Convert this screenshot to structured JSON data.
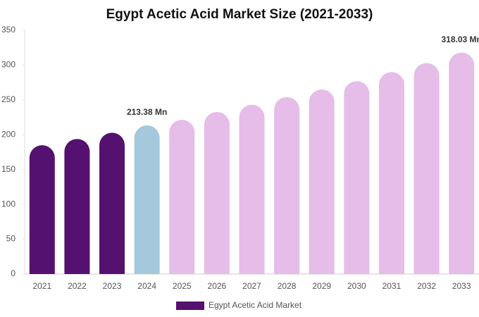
{
  "chart_data": {
    "type": "bar",
    "title": "Egypt Acetic Acid Market Size (2021-2033)",
    "categories": [
      "2021",
      "2022",
      "2023",
      "2024",
      "2025",
      "2026",
      "2027",
      "2028",
      "2029",
      "2030",
      "2031",
      "2032",
      "2033"
    ],
    "series": [
      {
        "name": "Egypt Acetic Acid Market",
        "color": "#541170",
        "values": [
          185,
          194,
          203,
          213.38,
          221.5,
          232.7,
          243,
          254,
          265,
          277,
          290,
          303,
          318.03
        ],
        "value_labels": [
          null,
          null,
          null,
          "213.38 Mn",
          null,
          null,
          null,
          null,
          null,
          null,
          null,
          null,
          "318.03 Mn"
        ],
        "colors": [
          "#541170",
          "#541170",
          "#541170",
          "#a4c8dc",
          "#e6bce8",
          "#e6bce8",
          "#e6bce8",
          "#e6bce8",
          "#e6bce8",
          "#e6bce8",
          "#e6bce8",
          "#e6bce8",
          "#e6bce8"
        ]
      }
    ],
    "ylim": [
      0,
      350
    ],
    "yticks": [
      0,
      50,
      100,
      150,
      200,
      250,
      300,
      350
    ]
  }
}
